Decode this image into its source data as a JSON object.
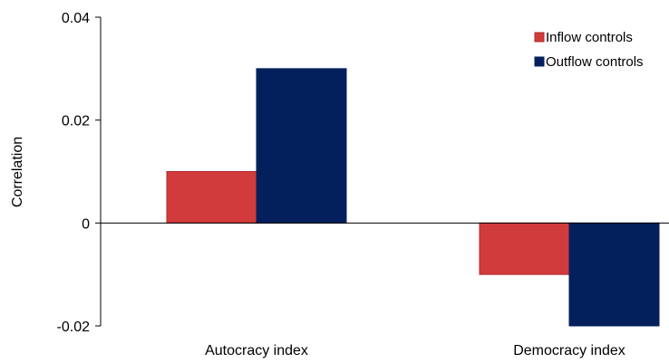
{
  "chart_data": {
    "type": "bar",
    "title": "",
    "xlabel": "",
    "ylabel": "Correlation",
    "categories": [
      "Autocracy index",
      "Democracy index"
    ],
    "series": [
      {
        "name": "Inflow controls",
        "values": [
          0.01,
          -0.01
        ],
        "color": "#d23b3b",
        "stroke": "#b02828"
      },
      {
        "name": "Outflow controls",
        "values": [
          0.03,
          -0.02
        ],
        "color": "#04205c",
        "stroke": "#04205c"
      }
    ],
    "ylim": [
      -0.02,
      0.04
    ],
    "yticks": [
      -0.02,
      0,
      0.02,
      0.04
    ],
    "ytick_labels": [
      "-0.02",
      "0",
      "0.02",
      "0.04"
    ],
    "grid": false,
    "legend_position": "top-right"
  }
}
